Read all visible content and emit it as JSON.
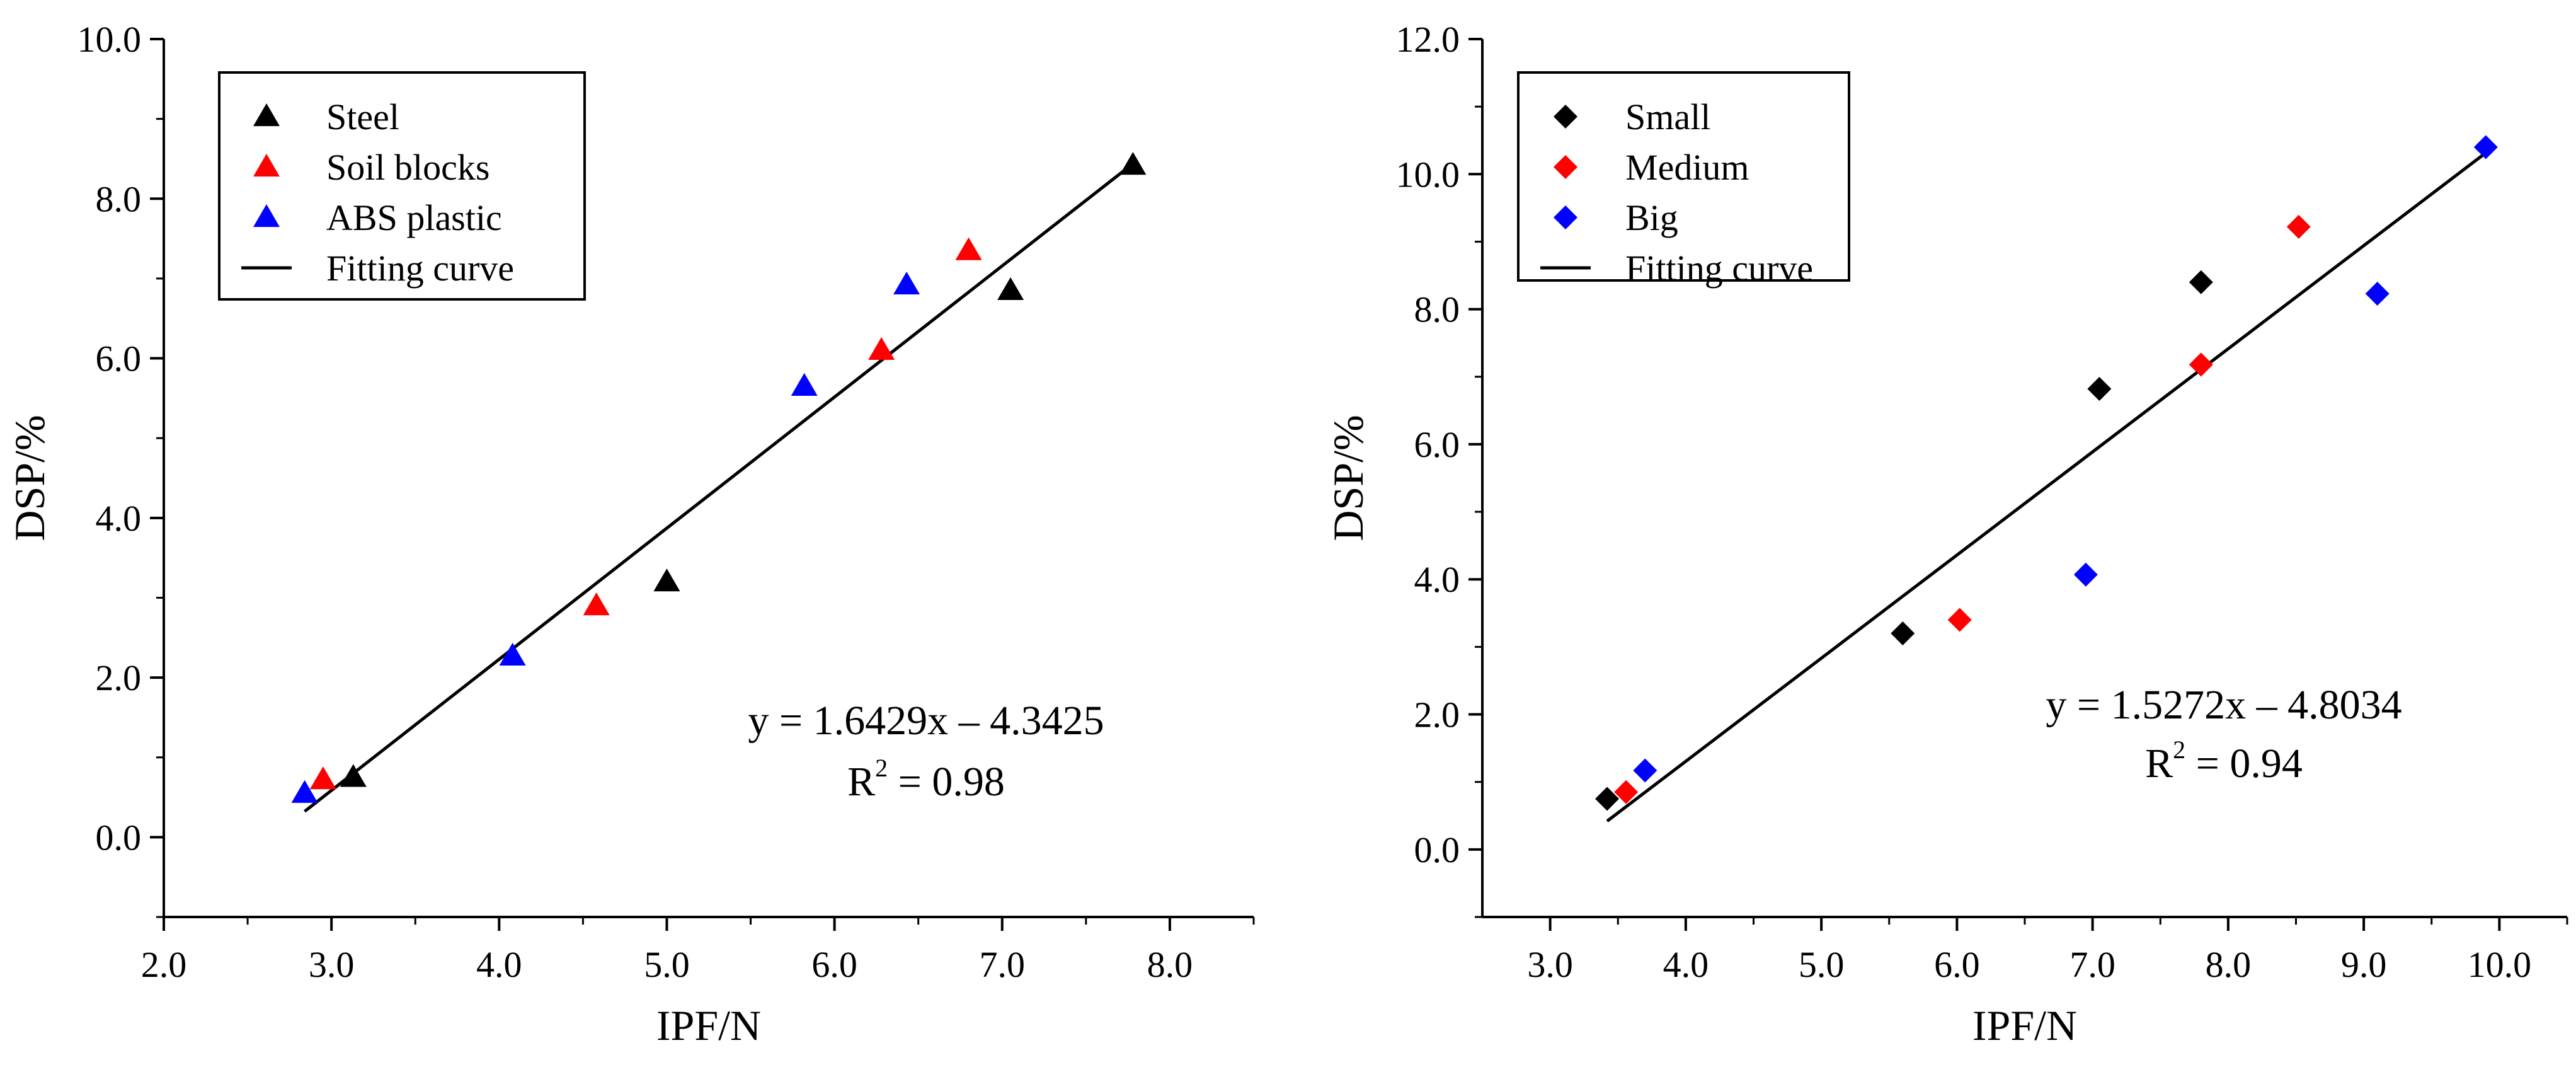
{
  "chart_data": [
    {
      "type": "scatter",
      "title": "",
      "xlabel": "IPF/N",
      "ylabel": "DSP/%",
      "xlim": [
        2.0,
        8.5
      ],
      "ylim": [
        -1.0,
        10.0
      ],
      "xticks": [
        2.0,
        3.0,
        4.0,
        5.0,
        6.0,
        7.0,
        8.0
      ],
      "xtick_labels": [
        "2.0",
        "3.0",
        "4.0",
        "5.0",
        "6.0",
        "7.0",
        "8.0"
      ],
      "yticks": [
        0.0,
        2.0,
        4.0,
        6.0,
        8.0,
        10.0
      ],
      "ytick_labels": [
        "0.0",
        "2.0",
        "4.0",
        "6.0",
        "8.0",
        "10.0"
      ],
      "marker": "triangle",
      "legend_position": "top-left",
      "series": [
        {
          "name": "Steel",
          "color": "#000000",
          "x": [
            3.13,
            5.0,
            7.05,
            7.78
          ],
          "y": [
            0.75,
            3.2,
            6.85,
            8.42
          ]
        },
        {
          "name": "Soil blocks",
          "color": "#ff0000",
          "x": [
            2.95,
            4.58,
            6.28,
            6.8
          ],
          "y": [
            0.72,
            2.9,
            6.1,
            7.35
          ]
        },
        {
          "name": "ABS plastic",
          "color": "#0000ff",
          "x": [
            2.84,
            4.08,
            5.82,
            6.43
          ],
          "y": [
            0.55,
            2.27,
            5.65,
            6.92
          ]
        }
      ],
      "fit": {
        "name": "Fitting curve",
        "color": "#000000",
        "slope": 1.6429,
        "intercept": -4.3425,
        "x_range": [
          2.84,
          7.8
        ],
        "equation": "y = 1.6429x – 4.3425",
        "r2_label": "R",
        "r2_sup": "2",
        "r2_value": " = 0.98"
      }
    },
    {
      "type": "scatter",
      "title": "",
      "xlabel": "IPF/N",
      "ylabel": "DSP/%",
      "xlim": [
        2.5,
        10.5
      ],
      "ylim": [
        -1.0,
        12.0
      ],
      "xticks": [
        3.0,
        4.0,
        5.0,
        6.0,
        7.0,
        8.0,
        9.0,
        10.0
      ],
      "xtick_labels": [
        "3.0",
        "4.0",
        "5.0",
        "6.0",
        "7.0",
        "8.0",
        "9.0",
        "10.0"
      ],
      "yticks": [
        0.0,
        2.0,
        4.0,
        6.0,
        8.0,
        10.0,
        12.0
      ],
      "ytick_labels": [
        "0.0",
        "2.0",
        "4.0",
        "6.0",
        "8.0",
        "10.0",
        "12.0"
      ],
      "marker": "diamond",
      "legend_position": "top-left",
      "series": [
        {
          "name": "Small",
          "color": "#000000",
          "x": [
            3.42,
            5.6,
            7.05,
            7.8
          ],
          "y": [
            0.75,
            3.2,
            6.82,
            8.4
          ]
        },
        {
          "name": "Medium",
          "color": "#ff0000",
          "x": [
            3.56,
            6.02,
            7.8,
            8.52
          ],
          "y": [
            0.85,
            3.4,
            7.18,
            9.22
          ]
        },
        {
          "name": "Big",
          "color": "#0000ff",
          "x": [
            3.7,
            6.95,
            9.1,
            9.9
          ],
          "y": [
            1.17,
            4.07,
            8.23,
            10.4
          ]
        }
      ],
      "fit": {
        "name": "Fitting curve",
        "color": "#000000",
        "slope": 1.5272,
        "intercept": -4.8034,
        "x_range": [
          3.42,
          9.9
        ],
        "equation": "y = 1.5272x – 4.8034",
        "r2_label": "R",
        "r2_sup": "2",
        "r2_value": " = 0.94"
      }
    }
  ]
}
